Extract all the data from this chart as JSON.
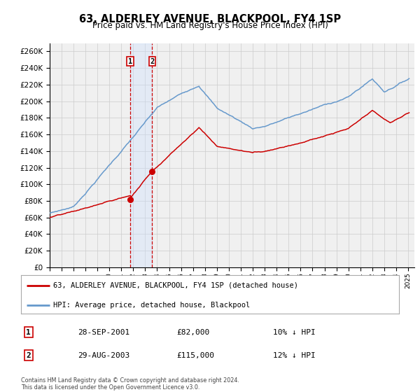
{
  "title": "63, ALDERLEY AVENUE, BLACKPOOL, FY4 1SP",
  "subtitle": "Price paid vs. HM Land Registry's House Price Index (HPI)",
  "legend_label_red": "63, ALDERLEY AVENUE, BLACKPOOL, FY4 1SP (detached house)",
  "legend_label_blue": "HPI: Average price, detached house, Blackpool",
  "transaction1_date": "28-SEP-2001",
  "transaction1_price": "£82,000",
  "transaction1_hpi": "10% ↓ HPI",
  "transaction2_date": "29-AUG-2003",
  "transaction2_price": "£115,000",
  "transaction2_hpi": "12% ↓ HPI",
  "footer": "Contains HM Land Registry data © Crown copyright and database right 2024.\nThis data is licensed under the Open Government Licence v3.0.",
  "ylim": [
    0,
    270000
  ],
  "yticks": [
    0,
    20000,
    40000,
    60000,
    80000,
    100000,
    120000,
    140000,
    160000,
    180000,
    200000,
    220000,
    240000,
    260000
  ],
  "red_color": "#cc0000",
  "blue_color": "#6699cc",
  "shade_color": "#cce0ff",
  "grid_color": "#cccccc",
  "background_color": "#ffffff",
  "plot_bg_color": "#f0f0f0",
  "sale1_x": 2001.75,
  "sale1_y": 82000,
  "sale2_x": 2003.583,
  "sale2_y": 115000,
  "xlim_left": 1995.0,
  "xlim_right": 2025.5
}
